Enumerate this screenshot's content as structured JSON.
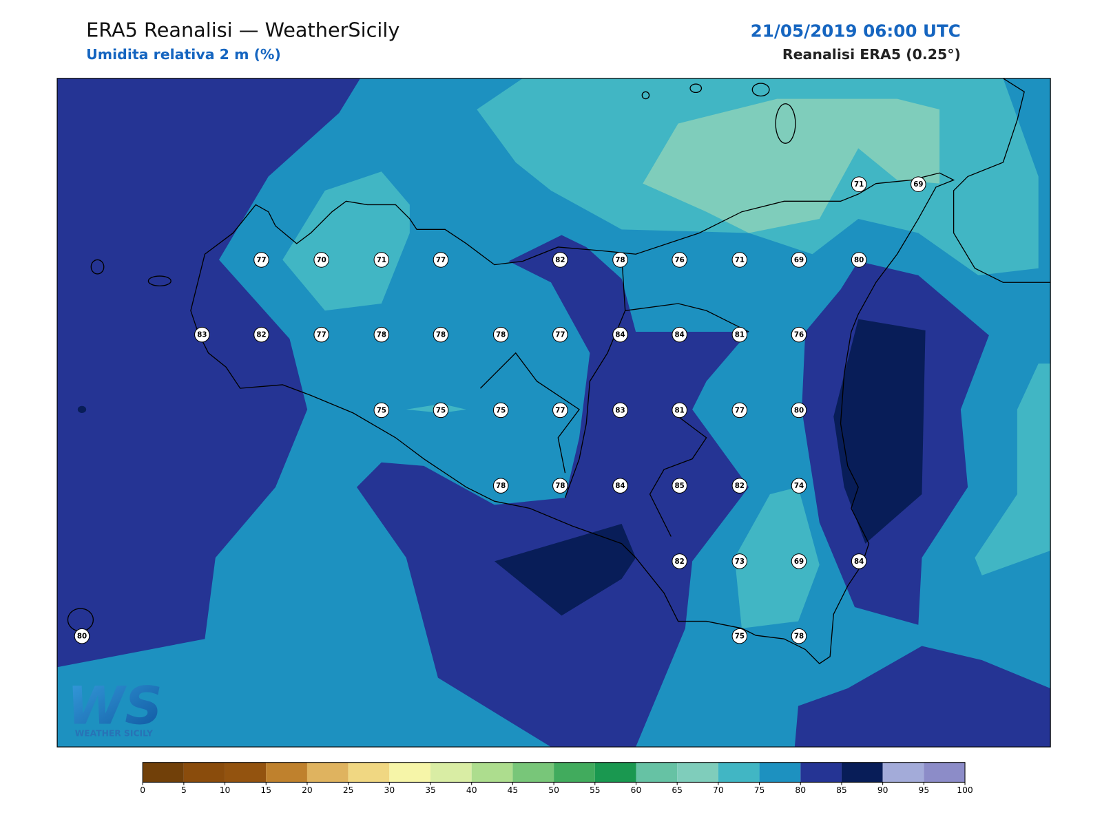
{
  "header": {
    "title": "ERA5 Reanalisi — WeatherSicily",
    "subtitle": "Umidita relativa 2 m (%)",
    "date": "21/05/2019 06:00 UTC",
    "source": "Reanalisi ERA5 (0.25°)"
  },
  "stations": [
    71,
    69,
    77,
    70,
    71,
    77,
    82,
    78,
    76,
    71,
    69,
    80,
    83,
    82,
    77,
    78,
    78,
    78,
    77,
    84,
    84,
    81,
    76,
    75,
    75,
    75,
    77,
    83,
    81,
    77,
    80,
    78,
    78,
    84,
    85,
    82,
    74,
    82,
    73,
    69,
    84,
    80,
    75,
    78
  ],
  "colorbar": {
    "ticks": [
      0,
      5,
      10,
      15,
      20,
      25,
      30,
      35,
      40,
      45,
      50,
      55,
      60,
      65,
      70,
      75,
      80,
      85,
      90,
      95,
      100
    ],
    "colors": [
      "#714009",
      "#8a4c0c",
      "#93530f",
      "#bf812d",
      "#dfb35f",
      "#f0d782",
      "#f6f5a8",
      "#d9eda4",
      "#addd8e",
      "#78c679",
      "#41ab5d",
      "#1a9850",
      "#66c2a4",
      "#7fcdbb",
      "#41b6c4",
      "#1d91c0",
      "#253494",
      "#081d58",
      "#a3abd9",
      "#8c8cc8"
    ]
  },
  "logo": {
    "mark": "WS",
    "text": "WEATHER SICILY"
  }
}
